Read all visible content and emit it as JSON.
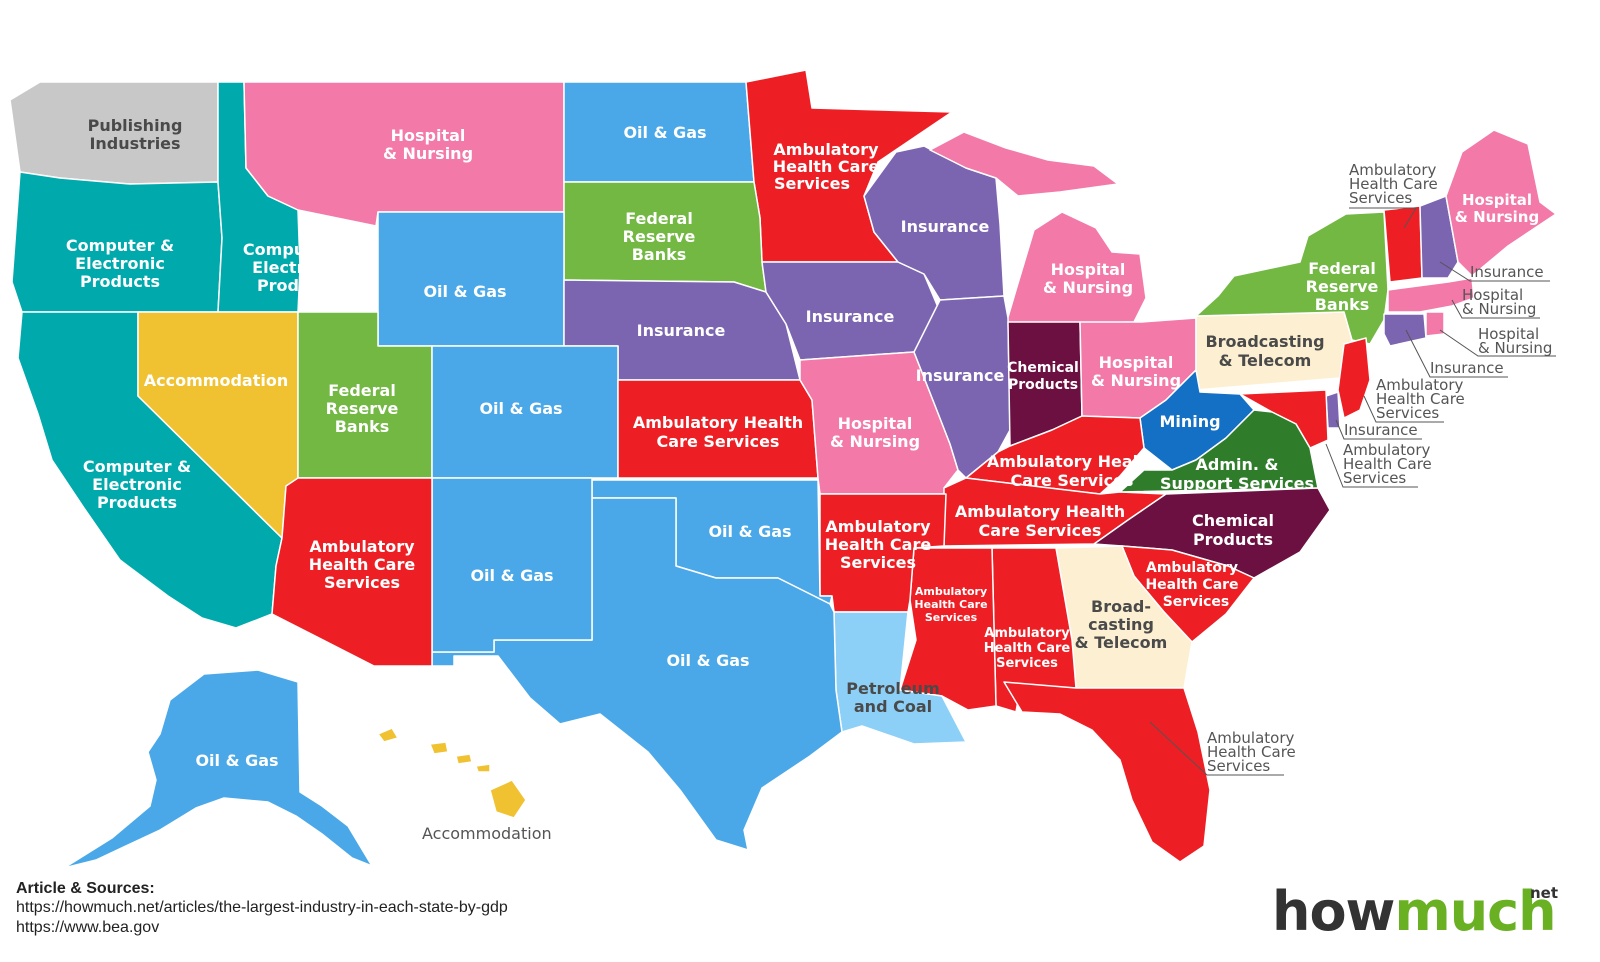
{
  "legend_colors": {
    "oil_gas": "#4aa8e8",
    "hospital_nursing": "#f279a8",
    "ambulatory": "#ed1f24",
    "insurance": "#7b64b0",
    "computer_electronic": "#00aaac",
    "federal_reserve": "#72b843",
    "accommodation": "#f0c232",
    "publishing": "#c8c8c8",
    "broadcasting": "#fdf0d2",
    "chemical": "#6b1040",
    "mining": "#1470c4",
    "petroleum_coal": "#8ccff7",
    "admin_support": "#2f7d2a"
  },
  "states": {
    "WA": {
      "industry": [
        "Publishing",
        "Industries"
      ]
    },
    "OR": {
      "industry": [
        "Computer &",
        "Electronic",
        "Products"
      ]
    },
    "ID": {
      "industry": [
        "Computer &",
        "Electronic",
        "Products"
      ]
    },
    "MT": {
      "industry": [
        "Hospital",
        "& Nursing"
      ]
    },
    "ND": {
      "industry": [
        "Oil & Gas"
      ]
    },
    "MN": {
      "industry": [
        "Ambulatory",
        "Health Care",
        "Services"
      ]
    },
    "SD": {
      "industry": [
        "Federal",
        "Reserve",
        "Banks"
      ]
    },
    "WY": {
      "industry": [
        "Oil & Gas"
      ]
    },
    "NE": {
      "industry": [
        "Insurance"
      ]
    },
    "IA": {
      "industry": [
        "Insurance"
      ]
    },
    "WI": {
      "industry": [
        "Insurance"
      ]
    },
    "MI": {
      "industry": [
        "Hospital",
        "& Nursing"
      ]
    },
    "NV": {
      "industry": [
        "Accommodation"
      ]
    },
    "UT": {
      "industry": [
        "Federal",
        "Reserve",
        "Banks"
      ]
    },
    "CO": {
      "industry": [
        "Oil & Gas"
      ]
    },
    "KS": {
      "industry": [
        "Ambulatory Health",
        "Care Services"
      ]
    },
    "MO": {
      "industry": [
        "Hospital",
        "& Nursing"
      ]
    },
    "IL": {
      "industry": [
        "Insurance"
      ]
    },
    "IN": {
      "industry": [
        "Chemical",
        "Products"
      ]
    },
    "OH": {
      "industry": [
        "Hospital",
        "& Nursing"
      ]
    },
    "PA": {
      "industry": [
        "Broadcasting",
        "& Telecom"
      ]
    },
    "NY": {
      "industry": [
        "Federal",
        "Reserve",
        "Banks"
      ]
    },
    "ME": {
      "industry": [
        "Hospital",
        "& Nursing"
      ]
    },
    "CA": {
      "industry": [
        "Computer &",
        "Electronic",
        "Products"
      ]
    },
    "AZ": {
      "industry": [
        "Ambulatory",
        "Health Care",
        "Services"
      ]
    },
    "NM": {
      "industry": [
        "Oil & Gas"
      ]
    },
    "OK": {
      "industry": [
        "Oil & Gas"
      ]
    },
    "TX": {
      "industry": [
        "Oil & Gas"
      ]
    },
    "AR": {
      "industry": [
        "Ambulatory",
        "Health Care",
        "Services"
      ]
    },
    "LA": {
      "industry": [
        "Petroleum",
        "and Coal"
      ]
    },
    "MS": {
      "industry": [
        "Ambulatory",
        "Health Care",
        "Services"
      ]
    },
    "AL": {
      "industry": [
        "Ambulatory",
        "Health Care",
        "Services"
      ]
    },
    "TN": {
      "industry": [
        "Ambulatory Health",
        "Care Services"
      ]
    },
    "KY": {
      "industry": [
        "Ambulatory Health",
        "Care Services"
      ]
    },
    "WV": {
      "industry": [
        "Mining"
      ]
    },
    "VA": {
      "industry": [
        "Admin. &",
        "Support Services"
      ]
    },
    "NC": {
      "industry": [
        "Chemical",
        "Products"
      ]
    },
    "SC": {
      "industry": [
        "Ambulatory",
        "Health Care",
        "Services"
      ]
    },
    "GA": {
      "industry": [
        "Broad-",
        "casting",
        "& Telecom"
      ]
    },
    "FL": {
      "industry": [
        "Ambulatory",
        "Health Care",
        "Services"
      ]
    },
    "AK": {
      "industry": [
        "Oil & Gas"
      ]
    },
    "HI": {
      "industry": [
        "Accommodation"
      ]
    },
    "VT": {
      "industry": [
        "Ambulatory",
        "Health Care",
        "Services"
      ]
    },
    "NH": {
      "industry": [
        "Insurance"
      ]
    },
    "MA": {
      "industry": [
        "Hospital",
        "& Nursing"
      ]
    },
    "RI": {
      "industry": [
        "Hospital",
        "& Nursing"
      ]
    },
    "CT": {
      "industry": [
        "Insurance"
      ]
    },
    "NJ": {
      "industry": [
        "Ambulatory",
        "Health Care",
        "Services"
      ]
    },
    "DE": {
      "industry": [
        "Insurance"
      ]
    },
    "MD": {
      "industry": [
        "Ambulatory",
        "Health Care",
        "Services"
      ]
    }
  },
  "sources": {
    "heading": "Article & Sources:",
    "line1": "https://howmuch.net/articles/the-largest-industry-in-each-state-by-gdp",
    "line2": "https://www.bea.gov"
  },
  "logo": {
    "how": "how",
    "much": "much",
    "net": "net"
  }
}
